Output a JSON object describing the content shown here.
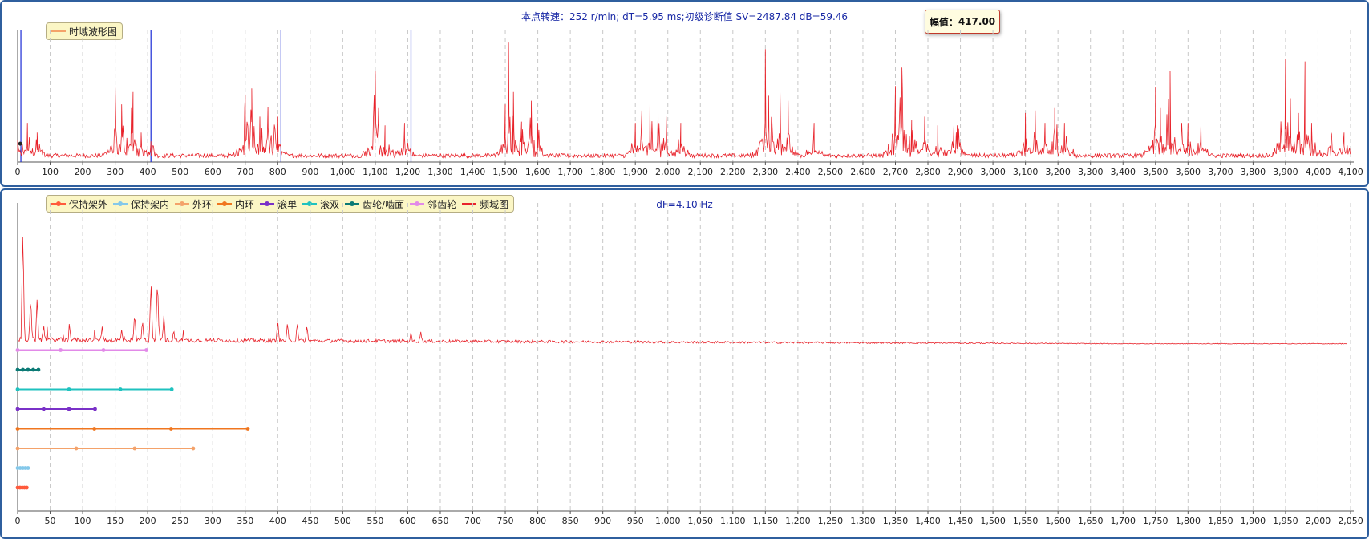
{
  "time_panel": {
    "title": "本点转速：252 r/min; dT=5.95 ms;初级诊断值 SV=2487.84 dB=59.46",
    "legend": "时域波形图",
    "tooltip_label": "幅值：",
    "tooltip_value": "417.00"
  },
  "freq_panel": {
    "title": "dF=4.10 Hz",
    "legend": [
      "保持架外",
      "保持架内",
      "外环",
      "内环",
      "滚单",
      "滚双",
      "齿轮/啮面",
      "邻齿轮",
      "频域图"
    ]
  },
  "colors": {
    "signal": "#e8232b",
    "marker": "#1a2bd6",
    "grid": "#c8c8c8",
    "panel_border": "#2f5f9e",
    "title": "#1a2aa6",
    "legend_bg": "#fbf6c5",
    "series": [
      "#ff5a3c",
      "#84c8ea",
      "#f4a26a",
      "#f0761f",
      "#7a31c8",
      "#1fc2bf",
      "#0b7a75",
      "#e28ae8",
      "#e8232b"
    ]
  },
  "chart_data": [
    {
      "type": "line",
      "title": "本点转速：252 r/min; dT=5.95 ms;初级诊断值 SV=2487.84 dB=59.46",
      "legend": "时域波形图",
      "xlim": [
        0,
        4100
      ],
      "xticks": [
        0,
        100,
        200,
        300,
        400,
        500,
        600,
        700,
        800,
        900,
        1000,
        1100,
        1200,
        1300,
        1400,
        1500,
        1600,
        1700,
        1800,
        1900,
        2000,
        2100,
        2200,
        2300,
        2400,
        2500,
        2600,
        2700,
        2800,
        2900,
        3000,
        3100,
        3200,
        3300,
        3400,
        3500,
        3600,
        3700,
        3800,
        3900,
        4000,
        4100
      ],
      "xtick_labels": [
        "0",
        "100",
        "200",
        "300",
        "400",
        "500",
        "600",
        "700",
        "800",
        "900",
        "1,000",
        "1,100",
        "1,200",
        "1,300",
        "1,400",
        "1,500",
        "1,600",
        "1,700",
        "1,800",
        "1,900",
        "2,000",
        "2,100",
        "2,200",
        "2,300",
        "2,400",
        "2,500",
        "2,600",
        "2,700",
        "2,800",
        "2,900",
        "3,000",
        "3,100",
        "3,200",
        "3,300",
        "3,400",
        "3,500",
        "3,600",
        "3,700",
        "3,800",
        "3,900",
        "4,000",
        "4,100"
      ],
      "ylim": [
        0,
        1
      ],
      "marker_lines": [
        10,
        410,
        810,
        1210
      ],
      "grid": "vertical-dashed",
      "legend_position": "top-left",
      "peaks": [
        [
          0,
          0.16
        ],
        [
          30,
          0.3
        ],
        [
          60,
          0.22
        ],
        [
          300,
          0.6
        ],
        [
          320,
          0.45
        ],
        [
          350,
          0.42
        ],
        [
          355,
          0.55
        ],
        [
          380,
          0.22
        ],
        [
          410,
          0.15
        ],
        [
          700,
          0.53
        ],
        [
          720,
          0.58
        ],
        [
          745,
          0.35
        ],
        [
          770,
          0.43
        ],
        [
          790,
          0.28
        ],
        [
          800,
          0.35
        ],
        [
          1100,
          0.72
        ],
        [
          1110,
          0.42
        ],
        [
          1130,
          0.28
        ],
        [
          1190,
          0.3
        ],
        [
          1500,
          0.45
        ],
        [
          1510,
          0.96
        ],
        [
          1525,
          0.55
        ],
        [
          1550,
          0.31
        ],
        [
          1580,
          0.48
        ],
        [
          1600,
          0.3
        ],
        [
          1900,
          0.3
        ],
        [
          1920,
          0.4
        ],
        [
          1945,
          0.45
        ],
        [
          1970,
          0.38
        ],
        [
          1995,
          0.35
        ],
        [
          2040,
          0.3
        ],
        [
          2300,
          0.9
        ],
        [
          2310,
          0.52
        ],
        [
          2320,
          0.35
        ],
        [
          2345,
          0.55
        ],
        [
          2370,
          0.48
        ],
        [
          2450,
          0.3
        ],
        [
          2700,
          0.6
        ],
        [
          2720,
          0.75
        ],
        [
          2750,
          0.32
        ],
        [
          2790,
          0.35
        ],
        [
          2830,
          0.28
        ],
        [
          2880,
          0.3
        ],
        [
          2890,
          0.28
        ],
        [
          3100,
          0.38
        ],
        [
          3130,
          0.4
        ],
        [
          3160,
          0.3
        ],
        [
          3190,
          0.42
        ],
        [
          3220,
          0.3
        ],
        [
          3500,
          0.59
        ],
        [
          3515,
          0.42
        ],
        [
          3545,
          0.72
        ],
        [
          3580,
          0.28
        ],
        [
          3600,
          0.3
        ],
        [
          3640,
          0.3
        ],
        [
          3900,
          0.82
        ],
        [
          3915,
          0.5
        ],
        [
          3940,
          0.38
        ],
        [
          3960,
          0.8
        ],
        [
          3980,
          0.3
        ],
        [
          4040,
          0.22
        ],
        [
          4080,
          0.22
        ]
      ]
    },
    {
      "type": "line",
      "title": "dF=4.10 Hz",
      "xlim": [
        0,
        2050
      ],
      "xticks": [
        0,
        50,
        100,
        150,
        200,
        250,
        300,
        350,
        400,
        450,
        500,
        550,
        600,
        650,
        700,
        750,
        800,
        850,
        900,
        950,
        1000,
        1050,
        1100,
        1150,
        1200,
        1250,
        1300,
        1350,
        1400,
        1450,
        1500,
        1550,
        1600,
        1650,
        1700,
        1750,
        1800,
        1850,
        1900,
        1950,
        2000,
        2050
      ],
      "xtick_labels": [
        "0",
        "50",
        "100",
        "150",
        "200",
        "250",
        "300",
        "350",
        "400",
        "450",
        "500",
        "550",
        "600",
        "650",
        "700",
        "750",
        "800",
        "850",
        "900",
        "950",
        "1,000",
        "1,050",
        "1,100",
        "1,150",
        "1,200",
        "1,250",
        "1,300",
        "1,350",
        "1,400",
        "1,450",
        "1,500",
        "1,550",
        "1,600",
        "1,650",
        "1,700",
        "1,750",
        "1,800",
        "1,850",
        "1,900",
        "1,950",
        "2,000",
        "2,050"
      ],
      "ylim": [
        0,
        1
      ],
      "grid": "vertical-dashed",
      "legend_position": "top-left",
      "spectrum_peaks": [
        [
          8,
          0.98
        ],
        [
          20,
          0.42
        ],
        [
          30,
          0.4
        ],
        [
          40,
          0.18
        ],
        [
          80,
          0.16
        ],
        [
          130,
          0.16
        ],
        [
          160,
          0.14
        ],
        [
          180,
          0.28
        ],
        [
          192,
          0.22
        ],
        [
          205,
          0.52
        ],
        [
          215,
          0.57
        ],
        [
          225,
          0.26
        ],
        [
          240,
          0.14
        ],
        [
          400,
          0.22
        ],
        [
          415,
          0.2
        ],
        [
          430,
          0.2
        ],
        [
          445,
          0.18
        ],
        [
          605,
          0.12
        ],
        [
          620,
          0.12
        ]
      ],
      "spectrum_baseline": 0.05,
      "series": [
        {
          "name": "邻齿轮",
          "x": [
            0,
            66,
            132,
            198
          ],
          "level": 8
        },
        {
          "name": "齿轮/啮面",
          "x": [
            0,
            8,
            16,
            24,
            32
          ],
          "level": 7
        },
        {
          "name": "滚双",
          "x": [
            0,
            79,
            158,
            237
          ],
          "level": 6
        },
        {
          "name": "滚单",
          "x": [
            0,
            40,
            79,
            119
          ],
          "level": 5
        },
        {
          "name": "内环",
          "x": [
            0,
            118,
            236,
            354
          ],
          "level": 4
        },
        {
          "name": "外环",
          "x": [
            0,
            90,
            180,
            270
          ],
          "level": 3
        },
        {
          "name": "保持架内",
          "x": [
            0,
            4,
            8,
            12,
            16
          ],
          "level": 2
        },
        {
          "name": "保持架外",
          "x": [
            0,
            3.5,
            7,
            10.5,
            14
          ],
          "level": 1
        }
      ]
    }
  ]
}
